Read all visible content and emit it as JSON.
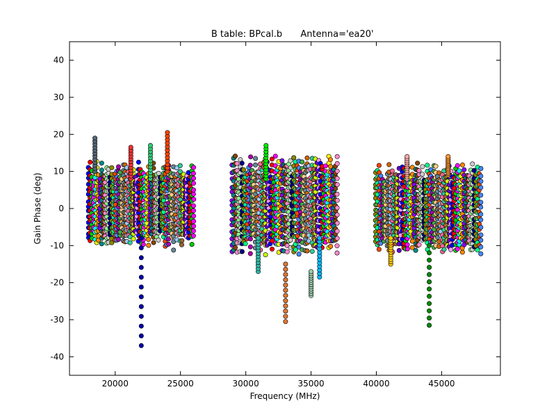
{
  "chart_data": {
    "type": "scatter",
    "title": "B table: BPcal.b",
    "title_suffix": "Antenna='ea20'",
    "xlabel": "Frequency (MHz)",
    "ylabel": "Gain Phase (deg)",
    "xlim": [
      16500,
      49500
    ],
    "ylim": [
      -45,
      45
    ],
    "x_ticks": [
      20000,
      25000,
      30000,
      35000,
      40000,
      45000
    ],
    "y_ticks": [
      -40,
      -30,
      -20,
      -10,
      0,
      10,
      20,
      30,
      40
    ],
    "grid": false,
    "legend": "none",
    "marker": "circle",
    "point_outline_color": "#000000",
    "palette": [
      "#0000ff",
      "#ff0000",
      "#00cc00",
      "#ff00ff",
      "#00ffff",
      "#ffff00",
      "#ff8800",
      "#8800ff",
      "#008888",
      "#884400",
      "#ff88cc",
      "#88ff88",
      "#cccccc",
      "#000088",
      "#888800",
      "#00ff88",
      "#ff4400",
      "#4488ff",
      "#aa00aa",
      "#44aa44",
      "#ffcc88",
      "#668899",
      "#cc6600",
      "#99ccff",
      "#ff6699",
      "#33cc99",
      "#996633",
      "#ccff00",
      "#6600cc",
      "#ff99ff"
    ],
    "series": [
      {
        "spw": 0,
        "x": [
          17950,
          26000
        ],
        "y_range": [
          -10,
          12
        ]
      },
      {
        "spw": 1,
        "x": [
          28950,
          37000
        ],
        "y_range": [
          -12,
          14
        ]
      },
      {
        "spw": 2,
        "x": [
          39950,
          48000
        ],
        "y_range": [
          -12,
          12
        ]
      }
    ],
    "outliers": [
      {
        "x": 22000,
        "y_range": [
          -37,
          -8
        ],
        "color": "#0000aa"
      },
      {
        "x": 24000,
        "y_range": [
          10,
          20.5
        ],
        "color": "#ff4400"
      },
      {
        "x": 21200,
        "y_range": [
          8,
          16.5
        ],
        "color": "#ff3333"
      },
      {
        "x": 22700,
        "y_range": [
          8,
          17
        ],
        "color": "#33cc77"
      },
      {
        "x": 18450,
        "y_range": [
          10,
          19
        ],
        "color": "#556677"
      },
      {
        "x": 31550,
        "y_range": [
          8,
          17
        ],
        "color": "#00ee00"
      },
      {
        "x": 33050,
        "y_range": [
          -30.5,
          -15
        ],
        "color": "#dd7733"
      },
      {
        "x": 35000,
        "y_range": [
          -23.5,
          -17
        ],
        "color": "#99ccaa"
      },
      {
        "x": 35650,
        "y_range": [
          -18.5,
          -8
        ],
        "color": "#00bbff"
      },
      {
        "x": 30950,
        "y_range": [
          -17,
          -8
        ],
        "color": "#33bbaa"
      },
      {
        "x": 44050,
        "y_range": [
          -31.5,
          -10
        ],
        "color": "#008800"
      },
      {
        "x": 41100,
        "y_range": [
          -15,
          -8
        ],
        "color": "#ffcc00"
      },
      {
        "x": 42350,
        "y_range": [
          8,
          14
        ],
        "color": "#ffaaaa"
      },
      {
        "x": 45500,
        "y_range": [
          9,
          14
        ],
        "color": "#ff9933"
      }
    ]
  }
}
